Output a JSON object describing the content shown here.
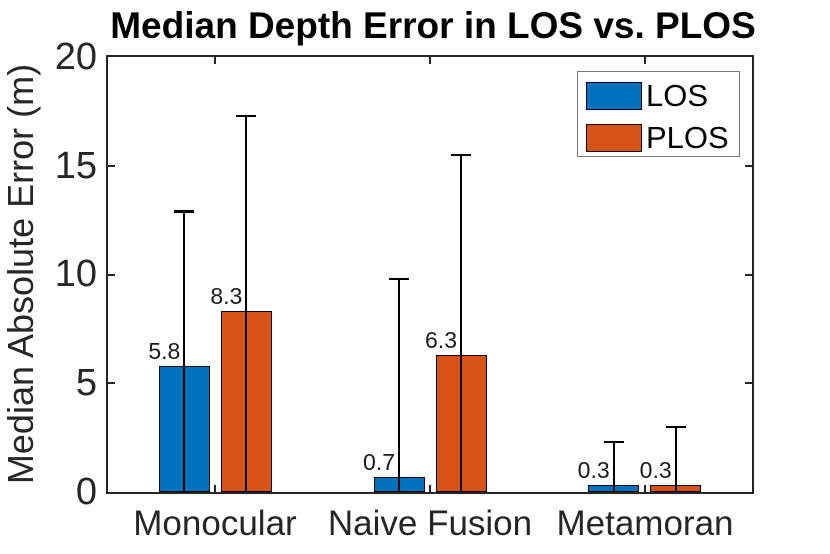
{
  "chart_data": {
    "type": "bar",
    "title": "Median Depth Error in LOS vs. PLOS",
    "ylabel": "Median Absolute Error (m)",
    "xlabel": "",
    "categories": [
      "Monocular",
      "Naive Fusion",
      "Metamoran"
    ],
    "series": [
      {
        "name": "LOS",
        "color": "#0072BD",
        "values": [
          5.8,
          0.7,
          0.3
        ],
        "value_labels": [
          "5.8",
          "0.7",
          "0.3"
        ],
        "error_top": [
          12.9,
          9.8,
          2.3
        ]
      },
      {
        "name": "PLOS",
        "color": "#D95319",
        "values": [
          8.3,
          6.3,
          0.3
        ],
        "value_labels": [
          "8.3",
          "6.3",
          "0.3"
        ],
        "error_top": [
          17.3,
          15.5,
          3.0
        ]
      }
    ],
    "ylim": [
      0,
      20
    ],
    "yticks": [
      0,
      5,
      10,
      15,
      20
    ],
    "grid": false,
    "legend_position": "top-right",
    "axis_color": "#262626",
    "error_bar_color": "#000000"
  }
}
